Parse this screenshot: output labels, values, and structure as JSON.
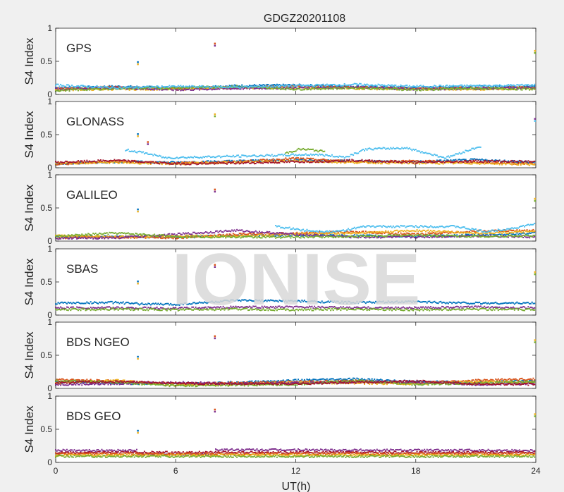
{
  "chart_data": {
    "type": "scatter",
    "title": "GDGZ20201108",
    "xlabel": "UT(h)",
    "ylabel": "S4 Index",
    "xlim": [
      0,
      24
    ],
    "ylim": [
      0,
      1
    ],
    "x_ticks": [
      "0",
      "6",
      "12",
      "18",
      "24"
    ],
    "y_ticks": [
      "0",
      "0.5",
      "1"
    ],
    "watermark": "IONISE",
    "series_colors": [
      "#0072BD",
      "#D95319",
      "#EDB120",
      "#7E2F8E",
      "#77AC30",
      "#4DBEEE",
      "#A2142F"
    ],
    "panels": [
      {
        "label": "GPS",
        "outliers": [
          {
            "x": 4.1,
            "y": 0.48
          },
          {
            "x": 7.95,
            "y": 0.76
          },
          {
            "x": 23.95,
            "y": 0.65
          }
        ],
        "series": [
          {
            "color": "#0072BD",
            "x": [
              0,
              3,
              6,
              9,
              12,
              15,
              18,
              21,
              24
            ],
            "y": [
              0.1,
              0.12,
              0.1,
              0.13,
              0.14,
              0.12,
              0.1,
              0.12,
              0.12
            ]
          },
          {
            "color": "#D95319",
            "x": [
              0,
              3,
              6,
              9,
              12,
              15,
              18,
              21,
              24
            ],
            "y": [
              0.09,
              0.11,
              0.09,
              0.11,
              0.12,
              0.11,
              0.09,
              0.1,
              0.11
            ]
          },
          {
            "color": "#EDB120",
            "x": [
              0,
              3,
              6,
              9,
              12,
              15,
              18,
              21,
              24
            ],
            "y": [
              0.07,
              0.08,
              0.08,
              0.1,
              0.1,
              0.09,
              0.08,
              0.08,
              0.09
            ]
          },
          {
            "color": "#7E2F8E",
            "x": [
              0,
              3,
              6,
              9,
              12,
              15,
              18,
              21,
              24
            ],
            "y": [
              0.08,
              0.1,
              0.07,
              0.09,
              0.1,
              0.11,
              0.08,
              0.09,
              0.1
            ]
          },
          {
            "color": "#77AC30",
            "x": [
              0,
              3,
              6,
              9,
              12,
              15,
              18,
              21,
              24
            ],
            "y": [
              0.06,
              0.09,
              0.1,
              0.12,
              0.08,
              0.1,
              0.07,
              0.09,
              0.08
            ]
          },
          {
            "color": "#4DBEEE",
            "x": [
              0,
              3,
              6,
              9,
              12,
              15,
              18,
              21,
              24
            ],
            "y": [
              0.14,
              0.1,
              0.12,
              0.11,
              0.13,
              0.15,
              0.12,
              0.13,
              0.14
            ]
          }
        ]
      },
      {
        "label": "GLONASS",
        "outliers": [
          {
            "x": 4.1,
            "y": 0.5
          },
          {
            "x": 4.6,
            "y": 0.38
          },
          {
            "x": 7.95,
            "y": 0.8
          },
          {
            "x": 23.95,
            "y": 0.73
          }
        ],
        "series": [
          {
            "color": "#0072BD",
            "x": [
              0,
              3,
              6,
              9,
              12,
              15,
              18,
              21,
              24
            ],
            "y": [
              0.06,
              0.09,
              0.08,
              0.1,
              0.12,
              0.1,
              0.09,
              0.12,
              0.08
            ]
          },
          {
            "color": "#D95319",
            "x": [
              0,
              3,
              6,
              9,
              12,
              15,
              18,
              21,
              24
            ],
            "y": [
              0.05,
              0.1,
              0.07,
              0.09,
              0.14,
              0.09,
              0.1,
              0.08,
              0.06
            ]
          },
          {
            "color": "#EDB120",
            "x": [
              0,
              3,
              6,
              9,
              12,
              15,
              18,
              21,
              24
            ],
            "y": [
              0.07,
              0.08,
              0.06,
              0.08,
              0.1,
              0.08,
              0.07,
              0.07,
              0.05
            ]
          },
          {
            "color": "#A2142F",
            "x": [
              0,
              3,
              6,
              9,
              12,
              15,
              18,
              21,
              24
            ],
            "y": [
              0.08,
              0.11,
              0.06,
              0.07,
              0.09,
              0.11,
              0.08,
              0.1,
              0.09
            ]
          },
          {
            "color": "#77AC30",
            "x": [
              11.5,
              12.2,
              12.8,
              13.5
            ],
            "y": [
              0.22,
              0.28,
              0.27,
              0.24
            ]
          },
          {
            "color": "#4DBEEE",
            "x": [
              3.5,
              4.5,
              5.5,
              13,
              14.5,
              15.5,
              17.5,
              19.5,
              21.3
            ],
            "y": [
              0.27,
              0.22,
              0.15,
              0.2,
              0.16,
              0.28,
              0.3,
              0.15,
              0.33
            ]
          }
        ]
      },
      {
        "label": "GALILEO",
        "outliers": [
          {
            "x": 4.1,
            "y": 0.47
          },
          {
            "x": 7.95,
            "y": 0.77
          },
          {
            "x": 23.95,
            "y": 0.63
          }
        ],
        "series": [
          {
            "color": "#0072BD",
            "x": [
              0,
              3,
              6,
              9,
              12,
              15,
              18,
              21,
              24
            ],
            "y": [
              0.06,
              0.07,
              0.06,
              0.08,
              0.09,
              0.08,
              0.07,
              0.09,
              0.12
            ]
          },
          {
            "color": "#D95319",
            "x": [
              0,
              3,
              6,
              9,
              12,
              15,
              18,
              21,
              24
            ],
            "y": [
              0.05,
              0.06,
              0.05,
              0.1,
              0.12,
              0.14,
              0.1,
              0.15,
              0.16
            ]
          },
          {
            "color": "#EDB120",
            "x": [
              0,
              3,
              6,
              9,
              12,
              15,
              18,
              21,
              24
            ],
            "y": [
              0.08,
              0.06,
              0.08,
              0.07,
              0.11,
              0.12,
              0.16,
              0.12,
              0.14
            ]
          },
          {
            "color": "#7E2F8E",
            "x": [
              0,
              3,
              6,
              9,
              12,
              15,
              18,
              21,
              24
            ],
            "y": [
              0.04,
              0.05,
              0.1,
              0.16,
              0.1,
              0.06,
              0.06,
              0.08,
              0.06
            ]
          },
          {
            "color": "#77AC30",
            "x": [
              0,
              3,
              6,
              9,
              12,
              15,
              18,
              21,
              24
            ],
            "y": [
              0.07,
              0.12,
              0.07,
              0.06,
              0.06,
              0.07,
              0.09,
              0.07,
              0.08
            ]
          },
          {
            "color": "#4DBEEE",
            "x": [
              11,
              12.5,
              14,
              15.5,
              20,
              21.5,
              23,
              24
            ],
            "y": [
              0.22,
              0.16,
              0.14,
              0.22,
              0.22,
              0.14,
              0.2,
              0.26
            ]
          }
        ]
      },
      {
        "label": "SBAS",
        "outliers": [
          {
            "x": 4.1,
            "y": 0.5
          },
          {
            "x": 7.95,
            "y": 0.75
          },
          {
            "x": 23.95,
            "y": 0.64
          }
        ],
        "series": [
          {
            "color": "#0072BD",
            "x": [
              0,
              3,
              4,
              6,
              9,
              12,
              15,
              18,
              21,
              24
            ],
            "y": [
              0.18,
              0.19,
              0.17,
              0.16,
              0.22,
              0.21,
              0.19,
              0.2,
              0.18,
              0.18
            ]
          },
          {
            "color": "#7E2F8E",
            "x": [
              0,
              3,
              6,
              9,
              12,
              15,
              18,
              21,
              24
            ],
            "y": [
              0.11,
              0.11,
              0.1,
              0.12,
              0.12,
              0.11,
              0.11,
              0.12,
              0.11
            ]
          },
          {
            "color": "#77AC30",
            "x": [
              0,
              3,
              6,
              9,
              12,
              15,
              18,
              21,
              24
            ],
            "y": [
              0.08,
              0.09,
              0.08,
              0.09,
              0.08,
              0.09,
              0.08,
              0.09,
              0.08
            ]
          }
        ]
      },
      {
        "label": "BDS NGEO",
        "outliers": [
          {
            "x": 4.1,
            "y": 0.47
          },
          {
            "x": 7.95,
            "y": 0.78
          },
          {
            "x": 23.95,
            "y": 0.72
          }
        ],
        "series": [
          {
            "color": "#0072BD",
            "x": [
              0,
              3,
              6,
              9,
              12,
              15,
              18,
              21,
              24
            ],
            "y": [
              0.1,
              0.08,
              0.06,
              0.09,
              0.12,
              0.14,
              0.1,
              0.09,
              0.12
            ]
          },
          {
            "color": "#D95319",
            "x": [
              0,
              3,
              6,
              9,
              12,
              15,
              18,
              21,
              24
            ],
            "y": [
              0.13,
              0.11,
              0.07,
              0.08,
              0.1,
              0.11,
              0.08,
              0.12,
              0.14
            ]
          },
          {
            "color": "#EDB120",
            "x": [
              0,
              3,
              6,
              9,
              12,
              15,
              18,
              21,
              24
            ],
            "y": [
              0.08,
              0.12,
              0.05,
              0.06,
              0.09,
              0.08,
              0.07,
              0.1,
              0.09
            ]
          },
          {
            "color": "#7E2F8E",
            "x": [
              0,
              3,
              6,
              9,
              12,
              15,
              18,
              21,
              24
            ],
            "y": [
              0.06,
              0.07,
              0.09,
              0.07,
              0.08,
              0.1,
              0.09,
              0.06,
              0.07
            ]
          },
          {
            "color": "#77AC30",
            "x": [
              0,
              3,
              6,
              9,
              12,
              15,
              18,
              21,
              24
            ],
            "y": [
              0.12,
              0.09,
              0.04,
              0.05,
              0.06,
              0.12,
              0.06,
              0.08,
              0.1
            ]
          },
          {
            "color": "#A2142F",
            "x": [
              0,
              3,
              6,
              9,
              12,
              15,
              18,
              21,
              24
            ],
            "y": [
              0.09,
              0.1,
              0.08,
              0.07,
              0.07,
              0.09,
              0.11,
              0.07,
              0.06
            ]
          }
        ]
      },
      {
        "label": "BDS GEO",
        "outliers": [
          {
            "x": 4.1,
            "y": 0.47
          },
          {
            "x": 7.95,
            "y": 0.79
          },
          {
            "x": 23.95,
            "y": 0.72
          }
        ],
        "series": [
          {
            "color": "#7E2F8E",
            "x": [
              0,
              4.05,
              4.1,
              7.9,
              8.0,
              24
            ],
            "y": [
              0.18,
              0.18,
              0.12,
              0.12,
              0.19,
              0.18
            ]
          },
          {
            "color": "#A2142F",
            "x": [
              0,
              24
            ],
            "y": [
              0.15,
              0.15
            ]
          },
          {
            "color": "#D95319",
            "x": [
              0,
              24
            ],
            "y": [
              0.13,
              0.13
            ]
          },
          {
            "color": "#EDB120",
            "x": [
              0,
              24
            ],
            "y": [
              0.11,
              0.11
            ]
          },
          {
            "color": "#77AC30",
            "x": [
              0,
              24
            ],
            "y": [
              0.09,
              0.09
            ]
          }
        ]
      }
    ]
  }
}
